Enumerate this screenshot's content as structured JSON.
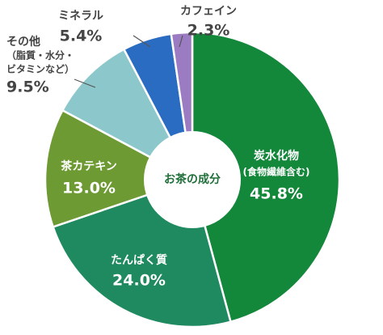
{
  "chart_data": {
    "type": "donut",
    "title": "お茶の成分",
    "categories": [
      [
        "炭水化物",
        "(食物繊維含む)"
      ],
      [
        "たんぱく質"
      ],
      [
        "茶カテキン"
      ],
      [
        "その他",
        "（脂質・水分・",
        "ビタミンなど）"
      ],
      [
        "ミネラル"
      ],
      [
        "カフェイン"
      ]
    ],
    "values": [
      45.8,
      24.0,
      13.0,
      9.5,
      5.4,
      2.3
    ],
    "value_labels": [
      "45.8%",
      "24.0%",
      "13.0%",
      "9.5%",
      "5.4%",
      "2.3%"
    ],
    "colors": [
      "#13873a",
      "#1f8a5f",
      "#6e9a33",
      "#8cc8cb",
      "#2b6cc3",
      "#9b7bc1"
    ]
  }
}
